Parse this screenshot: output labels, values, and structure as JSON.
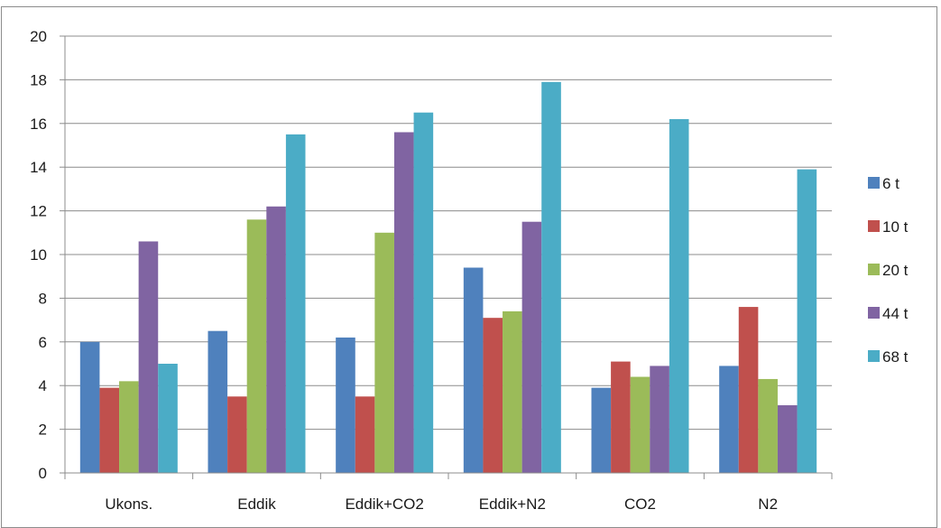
{
  "chart_data": {
    "type": "bar",
    "categories": [
      "Ukons.",
      "Eddik",
      "Eddik+CO2",
      "Eddik+N2",
      "CO2",
      "N2"
    ],
    "series": [
      {
        "name": "6 t",
        "color": "#4f81bd",
        "values": [
          6.0,
          6.5,
          6.2,
          9.4,
          3.9,
          4.9
        ]
      },
      {
        "name": "10 t",
        "color": "#c0504d",
        "values": [
          3.9,
          3.5,
          3.5,
          7.1,
          5.1,
          7.6
        ]
      },
      {
        "name": "20 t",
        "color": "#9bbb59",
        "values": [
          4.2,
          11.6,
          11.0,
          7.4,
          4.4,
          4.3
        ]
      },
      {
        "name": "44 t",
        "color": "#8064a2",
        "values": [
          10.6,
          12.2,
          15.6,
          11.5,
          4.9,
          3.1
        ]
      },
      {
        "name": "68 t",
        "color": "#4bacc6",
        "values": [
          5.0,
          15.5,
          16.5,
          17.9,
          16.2,
          13.9
        ]
      }
    ],
    "yticks": [
      "0",
      "2",
      "4",
      "6",
      "8",
      "10",
      "12",
      "14",
      "16",
      "18",
      "20"
    ],
    "ylim": [
      0,
      20
    ],
    "grid": true,
    "legend": "right"
  }
}
